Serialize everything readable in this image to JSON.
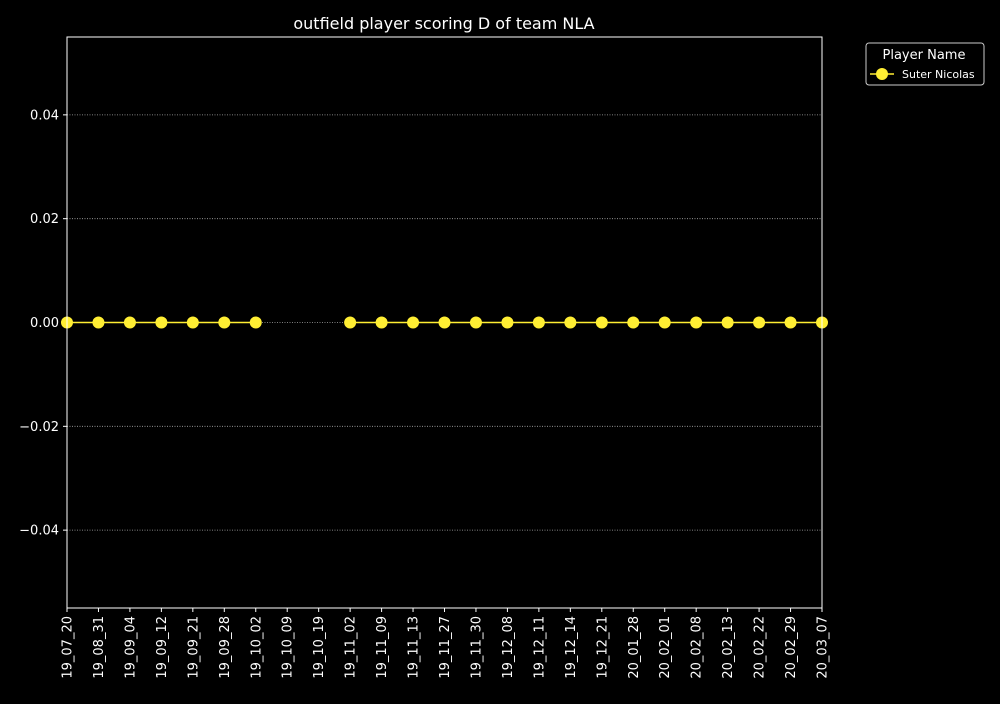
{
  "chart_data": {
    "type": "line",
    "title": "outfield player scoring D of team NLA",
    "xlabel": "",
    "ylabel": "",
    "ylim": [
      -0.055,
      0.055
    ],
    "yticks": [
      -0.04,
      -0.02,
      0.0,
      0.02,
      0.04
    ],
    "ytick_labels": [
      "−0.04",
      "−0.02",
      "0.00",
      "0.02",
      "0.04"
    ],
    "grid": "horizontal dotted",
    "categories": [
      "19_07_20",
      "19_08_31",
      "19_09_04",
      "19_09_12",
      "19_09_21",
      "19_09_28",
      "19_10_02",
      "19_10_09",
      "19_10_19",
      "19_11_02",
      "19_11_09",
      "19_11_13",
      "19_11_27",
      "19_11_30",
      "19_12_08",
      "19_12_11",
      "19_12_14",
      "19_12_21",
      "20_01_28",
      "20_02_01",
      "20_02_08",
      "20_02_13",
      "20_02_22",
      "20_02_29",
      "20_03_07"
    ],
    "series": [
      {
        "name": "Suter Nicolas",
        "color": "#ffee33",
        "values": [
          0,
          0,
          0,
          0,
          0,
          0,
          0,
          null,
          null,
          0,
          0,
          0,
          0,
          0,
          0,
          0,
          0,
          0,
          0,
          0,
          0,
          0,
          0,
          0,
          0
        ]
      }
    ],
    "legend": {
      "title": "Player Name",
      "position": "upper-right-outside"
    },
    "colors": {
      "background": "#000000",
      "axes": "#ffffff",
      "grid": "#aaaaaa"
    }
  }
}
